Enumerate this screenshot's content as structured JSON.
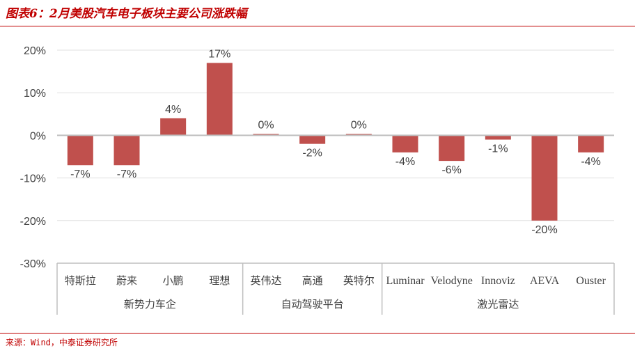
{
  "title": "图表6：2月美股汽车电子板块主要公司涨跌幅",
  "source": "来源：Wind，中泰证券研究所",
  "colors": {
    "bar": "#c0504d",
    "accent": "#c00000",
    "grid": "#e0e0e0",
    "axis": "#bfbfbf",
    "text": "#404040"
  },
  "chart_data": {
    "type": "bar",
    "categories": [
      "特斯拉",
      "蔚来",
      "小鹏",
      "理想",
      "英伟达",
      "高通",
      "英特尔",
      "Luminar",
      "Velodyne",
      "Innoviz",
      "AEVA",
      "Ouster"
    ],
    "values": [
      -7,
      -7,
      4,
      17,
      0,
      -2,
      0,
      -4,
      -6,
      -1,
      -20,
      -4
    ],
    "value_labels": [
      "-7%",
      "-7%",
      "4%",
      "17%",
      "0%",
      "-2%",
      "0%",
      "-4%",
      "-6%",
      "-1%",
      "-20%",
      "-4%"
    ],
    "groups": [
      {
        "label": "新势力车企",
        "count": 4
      },
      {
        "label": "自动驾驶平台",
        "count": 3
      },
      {
        "label": "激光雷达",
        "count": 5
      }
    ],
    "yticks": [
      "20%",
      "10%",
      "0%",
      "-10%",
      "-20%",
      "-30%"
    ],
    "ylim": [
      -30,
      20
    ],
    "grid": true,
    "legend": "none"
  }
}
